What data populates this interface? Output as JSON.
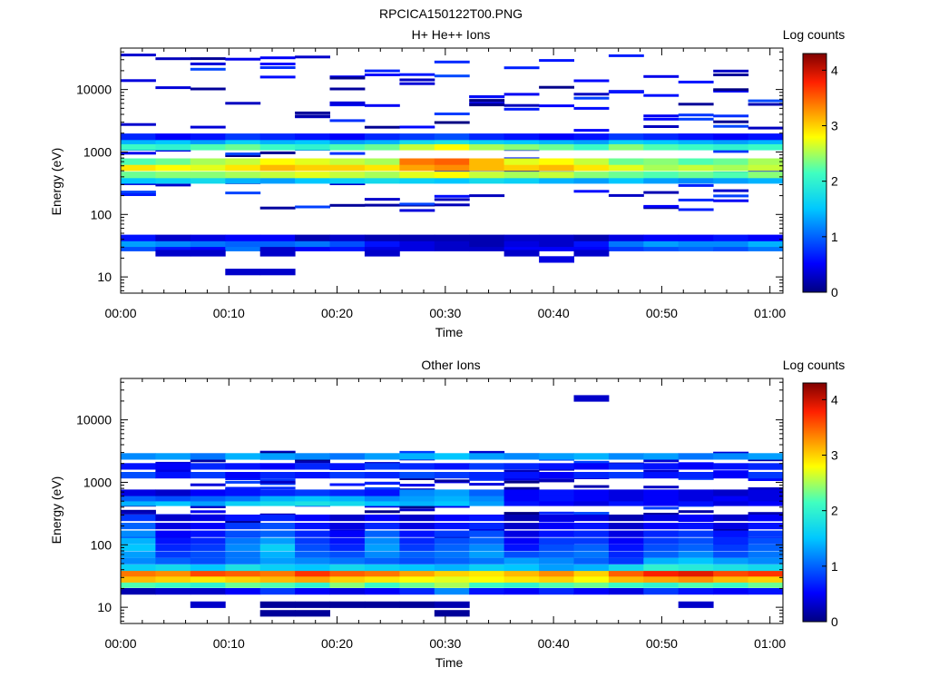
{
  "figure_title": "RPCICA150122T00.PNG",
  "colorbar": {
    "label": "Log counts",
    "ticks": [
      "0",
      "1",
      "2",
      "3",
      "4"
    ],
    "min": 0,
    "max": 4.3
  },
  "chart_data": [
    {
      "type": "heatmap",
      "title": "H+ He++ Ions",
      "xlabel": "Time",
      "ylabel": "Energy (eV)",
      "x_ticks": [
        "00:00",
        "00:10",
        "00:20",
        "00:30",
        "00:40",
        "00:50",
        "01:00"
      ],
      "x_range_minutes": [
        0,
        61.2
      ],
      "y_scale": "log",
      "y_ticks": [
        "10",
        "100",
        "1000",
        "10000"
      ],
      "y_range": [
        5.5,
        46000
      ],
      "time_bins": 19,
      "colorbar_label": "Log counts",
      "bands": [
        {
          "energy_eV": 29,
          "values": [
            0.9,
            0.6,
            0.5,
            1.1,
            0.3,
            0.5,
            0.6,
            0.4,
            0.4,
            0.3,
            0.3,
            0.5,
            0.5,
            0.5,
            0.8,
            0.9,
            1.0,
            0.9,
            1.1
          ]
        },
        {
          "energy_eV": 34,
          "values": [
            1.3,
            1.2,
            1.1,
            1.0,
            1.0,
            1.1,
            0.9,
            0.6,
            0.4,
            0.3,
            0.2,
            0.4,
            0.3,
            0.6,
            1.1,
            1.3,
            1.2,
            1.2,
            1.4
          ]
        },
        {
          "energy_eV": 42,
          "values": [
            0.6,
            0.3,
            0.4,
            0.5,
            0.5,
            0.2,
            0.3,
            0.2,
            0.2,
            0.2,
            0.2,
            0.3,
            0.3,
            0.2,
            0.4,
            0.5,
            0.5,
            0.6,
            0.5
          ]
        },
        {
          "energy_eV": 350,
          "values": [
            1.5,
            1.6,
            1.7,
            1.4,
            1.3,
            1.5,
            1.6,
            1.7,
            1.6,
            1.5,
            1.7,
            1.6,
            1.4,
            1.3,
            1.5,
            1.3,
            1.2,
            1.3,
            1.4
          ]
        },
        {
          "energy_eV": 430,
          "values": [
            2.3,
            2.4,
            2.4,
            2.5,
            2.6,
            2.7,
            2.6,
            2.5,
            2.7,
            2.8,
            2.6,
            2.5,
            2.6,
            2.4,
            2.3,
            2.2,
            2.3,
            2.2,
            2.4
          ]
        },
        {
          "energy_eV": 560,
          "values": [
            2.9,
            2.8,
            2.7,
            2.9,
            3.1,
            3.0,
            3.0,
            2.9,
            3.2,
            3.3,
            3.1,
            3.0,
            3.1,
            2.9,
            2.7,
            2.5,
            2.6,
            2.5,
            2.6
          ]
        },
        {
          "energy_eV": 700,
          "values": [
            2.2,
            2.3,
            2.5,
            2.6,
            2.8,
            2.7,
            2.6,
            2.5,
            3.4,
            3.5,
            3.1,
            2.7,
            2.8,
            2.6,
            2.3,
            2.4,
            2.2,
            2.3,
            2.5
          ]
        },
        {
          "energy_eV": 1200,
          "values": [
            2.1,
            2.0,
            2.2,
            2.3,
            2.1,
            2.0,
            2.2,
            2.3,
            2.6,
            2.8,
            2.5,
            2.4,
            2.3,
            2.1,
            2.4,
            2.2,
            2.1,
            2.0,
            2.1
          ]
        },
        {
          "energy_eV": 1500,
          "values": [
            1.4,
            1.5,
            1.3,
            1.6,
            1.4,
            1.5,
            1.3,
            1.4,
            1.7,
            1.8,
            1.6,
            1.5,
            1.4,
            1.3,
            1.6,
            1.5,
            1.4,
            1.3,
            1.4
          ]
        },
        {
          "energy_eV": 1750,
          "values": [
            0.7,
            0.5,
            0.6,
            0.8,
            0.7,
            0.6,
            0.5,
            0.7,
            0.8,
            0.9,
            0.7,
            0.6,
            0.5,
            0.6,
            0.8,
            0.7,
            0.6,
            0.5,
            0.6
          ]
        },
        {
          "energy_eV": 12,
          "values": [
            0,
            0,
            0,
            0.3,
            0.3,
            0,
            0,
            0,
            0,
            0,
            0,
            0,
            0,
            0,
            0,
            0,
            0,
            0,
            0
          ]
        },
        {
          "energy_eV": 19,
          "values": [
            0,
            0,
            0,
            0,
            0,
            0,
            0,
            0,
            0,
            0,
            0,
            0,
            0.4,
            0,
            0,
            0,
            0,
            0,
            0
          ]
        },
        {
          "energy_eV": 24,
          "values": [
            0,
            0.3,
            0.3,
            0,
            0.3,
            0,
            0,
            0.3,
            0,
            0,
            0,
            0.3,
            0,
            0.3,
            0,
            0,
            0,
            0,
            0
          ]
        }
      ],
      "sparse_counts": "scattered low-count (0-1) cells above 100 eV"
    },
    {
      "type": "heatmap",
      "title": "Other Ions",
      "xlabel": "Time",
      "ylabel": "Energy (eV)",
      "x_ticks": [
        "00:00",
        "00:10",
        "00:20",
        "00:30",
        "00:40",
        "00:50",
        "01:00"
      ],
      "x_range_minutes": [
        0,
        61.2
      ],
      "y_scale": "log",
      "y_ticks": [
        "10",
        "100",
        "1000",
        "10000"
      ],
      "y_range": [
        5.5,
        46000
      ],
      "time_bins": 19,
      "colorbar_label": "Log counts",
      "bands": [
        {
          "energy_eV": 8,
          "values": [
            0,
            0,
            0,
            0,
            0.1,
            0.1,
            0,
            0,
            0,
            0.1,
            0,
            0,
            0,
            0,
            0,
            0,
            0,
            0,
            0
          ]
        },
        {
          "energy_eV": 11,
          "values": [
            0,
            0,
            0.3,
            0,
            0.1,
            0.1,
            0.1,
            0.1,
            0.1,
            0.2,
            0,
            0,
            0,
            0,
            0,
            0,
            0.3,
            0,
            0
          ]
        },
        {
          "energy_eV": 18,
          "values": [
            0.2,
            0.3,
            0.3,
            0.5,
            0.8,
            0.5,
            0.4,
            0.5,
            0.7,
            1.2,
            0.6,
            0.5,
            0.7,
            0.5,
            0.4,
            0.8,
            0.6,
            0.5,
            0.6
          ]
        },
        {
          "energy_eV": 23,
          "values": [
            2.2,
            2.1,
            2.0,
            2.3,
            2.2,
            2.0,
            2.4,
            2.1,
            2.3,
            2.5,
            2.1,
            2.0,
            2.2,
            2.3,
            2.1,
            2.0,
            2.2,
            2.1,
            2.3
          ]
        },
        {
          "energy_eV": 28,
          "values": [
            3.1,
            3.0,
            2.9,
            3.0,
            3.1,
            3.2,
            3.0,
            2.9,
            2.8,
            2.7,
            2.8,
            2.9,
            3.0,
            2.8,
            3.1,
            3.2,
            3.3,
            3.1,
            3.0
          ]
        },
        {
          "energy_eV": 35,
          "values": [
            3.4,
            3.3,
            3.6,
            3.5,
            3.4,
            3.7,
            3.5,
            3.4,
            3.2,
            3.0,
            2.9,
            3.1,
            3.3,
            3.0,
            3.5,
            3.8,
            3.9,
            3.6,
            3.7
          ]
        },
        {
          "energy_eV": 43,
          "values": [
            1.6,
            1.7,
            1.5,
            1.8,
            1.6,
            1.5,
            1.7,
            1.6,
            1.5,
            1.4,
            1.6,
            1.5,
            1.3,
            1.4,
            1.7,
            2.0,
            1.9,
            1.8,
            1.7
          ]
        },
        {
          "energy_eV": 55,
          "values": [
            1.2,
            1.0,
            0.9,
            1.1,
            1.3,
            1.2,
            1.1,
            1.0,
            0.9,
            1.0,
            1.1,
            1.3,
            1.2,
            1.0,
            0.8,
            1.4,
            1.5,
            1.3,
            1.2
          ]
        },
        {
          "energy_eV": 70,
          "values": [
            1.3,
            0.8,
            0.9,
            1.1,
            1.4,
            1.0,
            0.9,
            1.2,
            1.0,
            1.1,
            1.3,
            0.9,
            1.0,
            1.1,
            0.7,
            1.0,
            1.2,
            0.9,
            1.1
          ]
        },
        {
          "energy_eV": 90,
          "values": [
            1.5,
            0.7,
            0.8,
            1.2,
            1.6,
            0.9,
            0.7,
            1.3,
            0.8,
            1.0,
            1.2,
            0.6,
            0.9,
            1.0,
            0.6,
            0.9,
            1.0,
            0.8,
            1.0
          ]
        },
        {
          "energy_eV": 115,
          "values": [
            1.4,
            0.6,
            0.7,
            1.1,
            1.3,
            0.8,
            0.6,
            1.2,
            0.7,
            0.9,
            1.0,
            0.5,
            0.8,
            0.8,
            0.5,
            0.8,
            0.9,
            0.7,
            0.9
          ]
        },
        {
          "energy_eV": 150,
          "values": [
            1.2,
            0.5,
            0.6,
            0.9,
            1.0,
            0.7,
            0.5,
            1.0,
            0.6,
            0.8,
            0.9,
            0.4,
            0.6,
            0.7,
            0.4,
            0.7,
            0.8,
            0.6,
            0.8
          ]
        },
        {
          "energy_eV": 200,
          "values": [
            1.0,
            0.4,
            0.5,
            0.8,
            0.9,
            0.6,
            0.4,
            0.7,
            0.4,
            0.6,
            0.7,
            0.3,
            0.5,
            0.6,
            0.3,
            0.5,
            0.6,
            0.4,
            0.6
          ]
        },
        {
          "energy_eV": 270,
          "values": [
            0.8,
            0.3,
            0.4,
            0.6,
            0.7,
            0.5,
            0.3,
            0.5,
            0.3,
            0.5,
            0.6,
            0.2,
            0.4,
            0.4,
            0.2,
            0.4,
            0.5,
            0.3,
            0.5
          ]
        },
        {
          "energy_eV": 470,
          "values": [
            1.4,
            1.5,
            1.3,
            1.6,
            1.7,
            1.8,
            1.7,
            1.5,
            1.4,
            1.5,
            1.3,
            0.6,
            0.5,
            0.4,
            0.6,
            0.5,
            0.6,
            0.4,
            0.5
          ]
        },
        {
          "energy_eV": 560,
          "values": [
            1.0,
            0.9,
            1.0,
            1.1,
            1.4,
            1.5,
            1.4,
            1.2,
            1.3,
            1.4,
            1.2,
            0.5,
            0.6,
            0.5,
            0.4,
            0.5,
            0.4,
            0.5,
            0.4
          ]
        },
        {
          "energy_eV": 680,
          "values": [
            0.4,
            0.3,
            0.5,
            0.6,
            0.7,
            0.8,
            0.7,
            0.6,
            1.2,
            1.3,
            1.0,
            0.5,
            0.6,
            0.5,
            0.4,
            0.5,
            0.4,
            0.3,
            0.4
          ]
        },
        {
          "energy_eV": 1300,
          "values": [
            0.9,
            0.6,
            0.8,
            0.5,
            0.7,
            0.6,
            0.8,
            0.7,
            0.9,
            0.8,
            0.7,
            0.6,
            0.5,
            0.7,
            0.8,
            0.6,
            0.7,
            0.5,
            0.8
          ]
        },
        {
          "energy_eV": 1800,
          "values": [
            0.6,
            0.5,
            0.7,
            0.6,
            0.5,
            0.7,
            0.6,
            0.8,
            0.7,
            0.6,
            0.8,
            0.7,
            0.6,
            0.5,
            0.7,
            0.6,
            0.5,
            0.6,
            0.7
          ]
        },
        {
          "energy_eV": 2600,
          "values": [
            1.2,
            1.3,
            1.1,
            1.4,
            1.3,
            1.2,
            1.1,
            1.3,
            1.4,
            1.5,
            1.3,
            1.2,
            1.3,
            1.4,
            1.2,
            1.3,
            1.1,
            1.2,
            1.3
          ]
        },
        {
          "energy_eV": 22000,
          "values": [
            0,
            0,
            0,
            0,
            0,
            0,
            0,
            0,
            0,
            0,
            0,
            0,
            0,
            0.3,
            0,
            0,
            0,
            0,
            0
          ]
        }
      ],
      "sparse_counts": "scattered low-count (0-1) cells between 100 eV and 3000 eV"
    }
  ]
}
